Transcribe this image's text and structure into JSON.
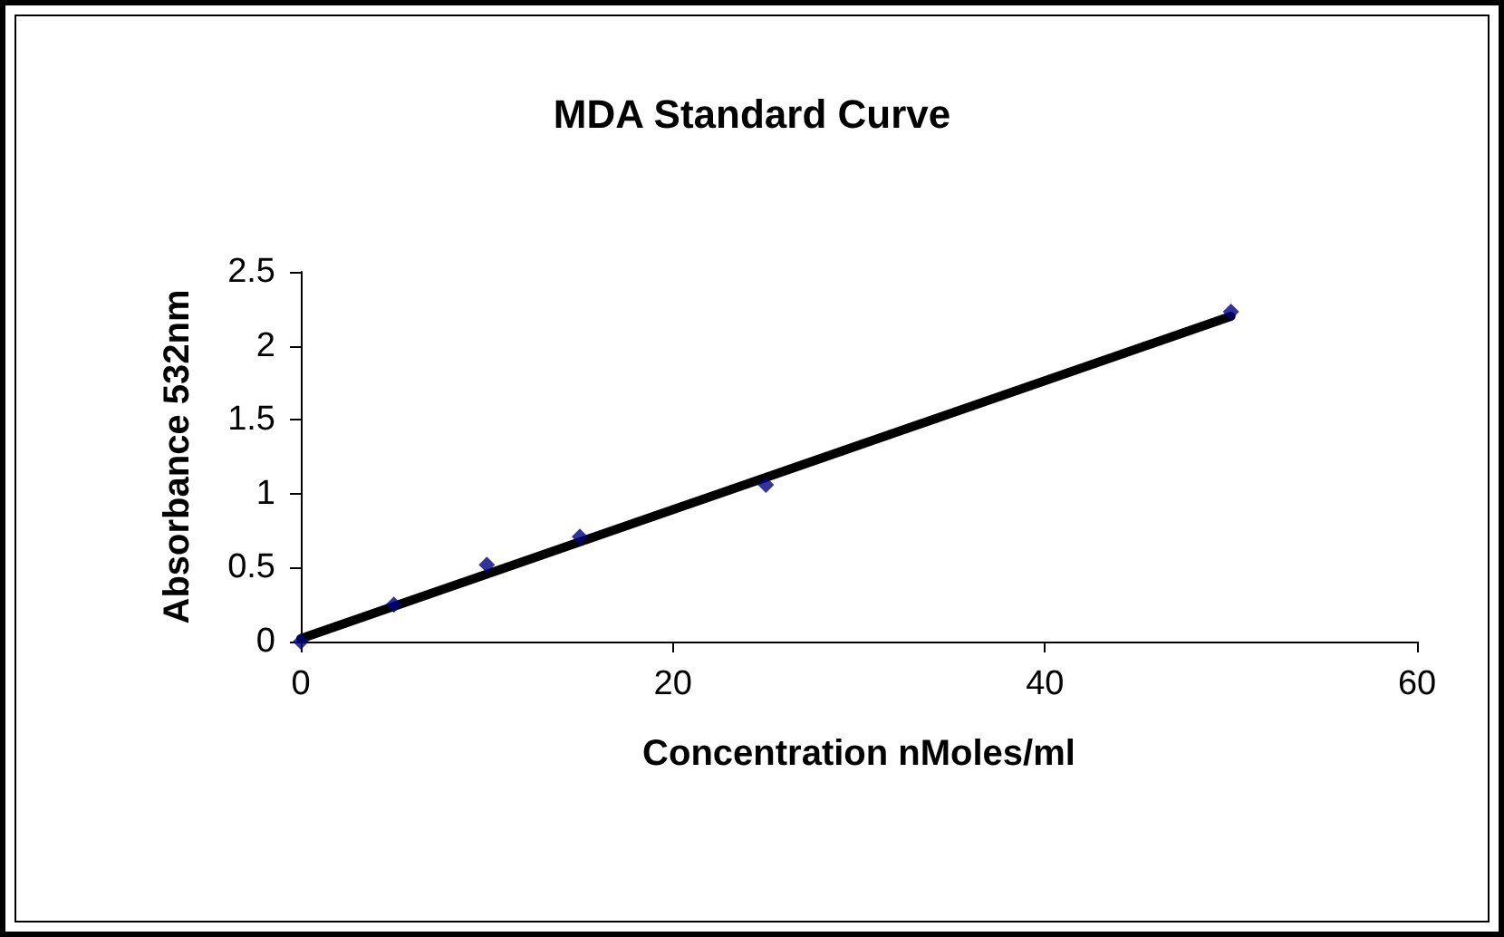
{
  "chart_data": {
    "type": "scatter",
    "title": "MDA Standard Curve",
    "xlabel": "Concentration nMoles/ml",
    "ylabel": "Absorbance 532nm",
    "xlim": [
      0,
      60
    ],
    "xticks": [
      0,
      20,
      40,
      60
    ],
    "ylim": [
      0,
      2.5
    ],
    "yticks": [
      0,
      0.5,
      1,
      1.5,
      2,
      2.5
    ],
    "grid": false,
    "marker": "diamond",
    "series": [
      {
        "color": "#000080",
        "x": [
          0,
          5,
          10,
          15,
          25,
          50
        ],
        "values": [
          0,
          0.25,
          0.52,
          0.71,
          1.06,
          2.23
        ]
      },
      {
        "type": "line",
        "color": "#000000",
        "marker": "none",
        "line_style": "solid",
        "x": [
          0,
          50
        ],
        "values": [
          0.02,
          2.2
        ]
      }
    ]
  }
}
